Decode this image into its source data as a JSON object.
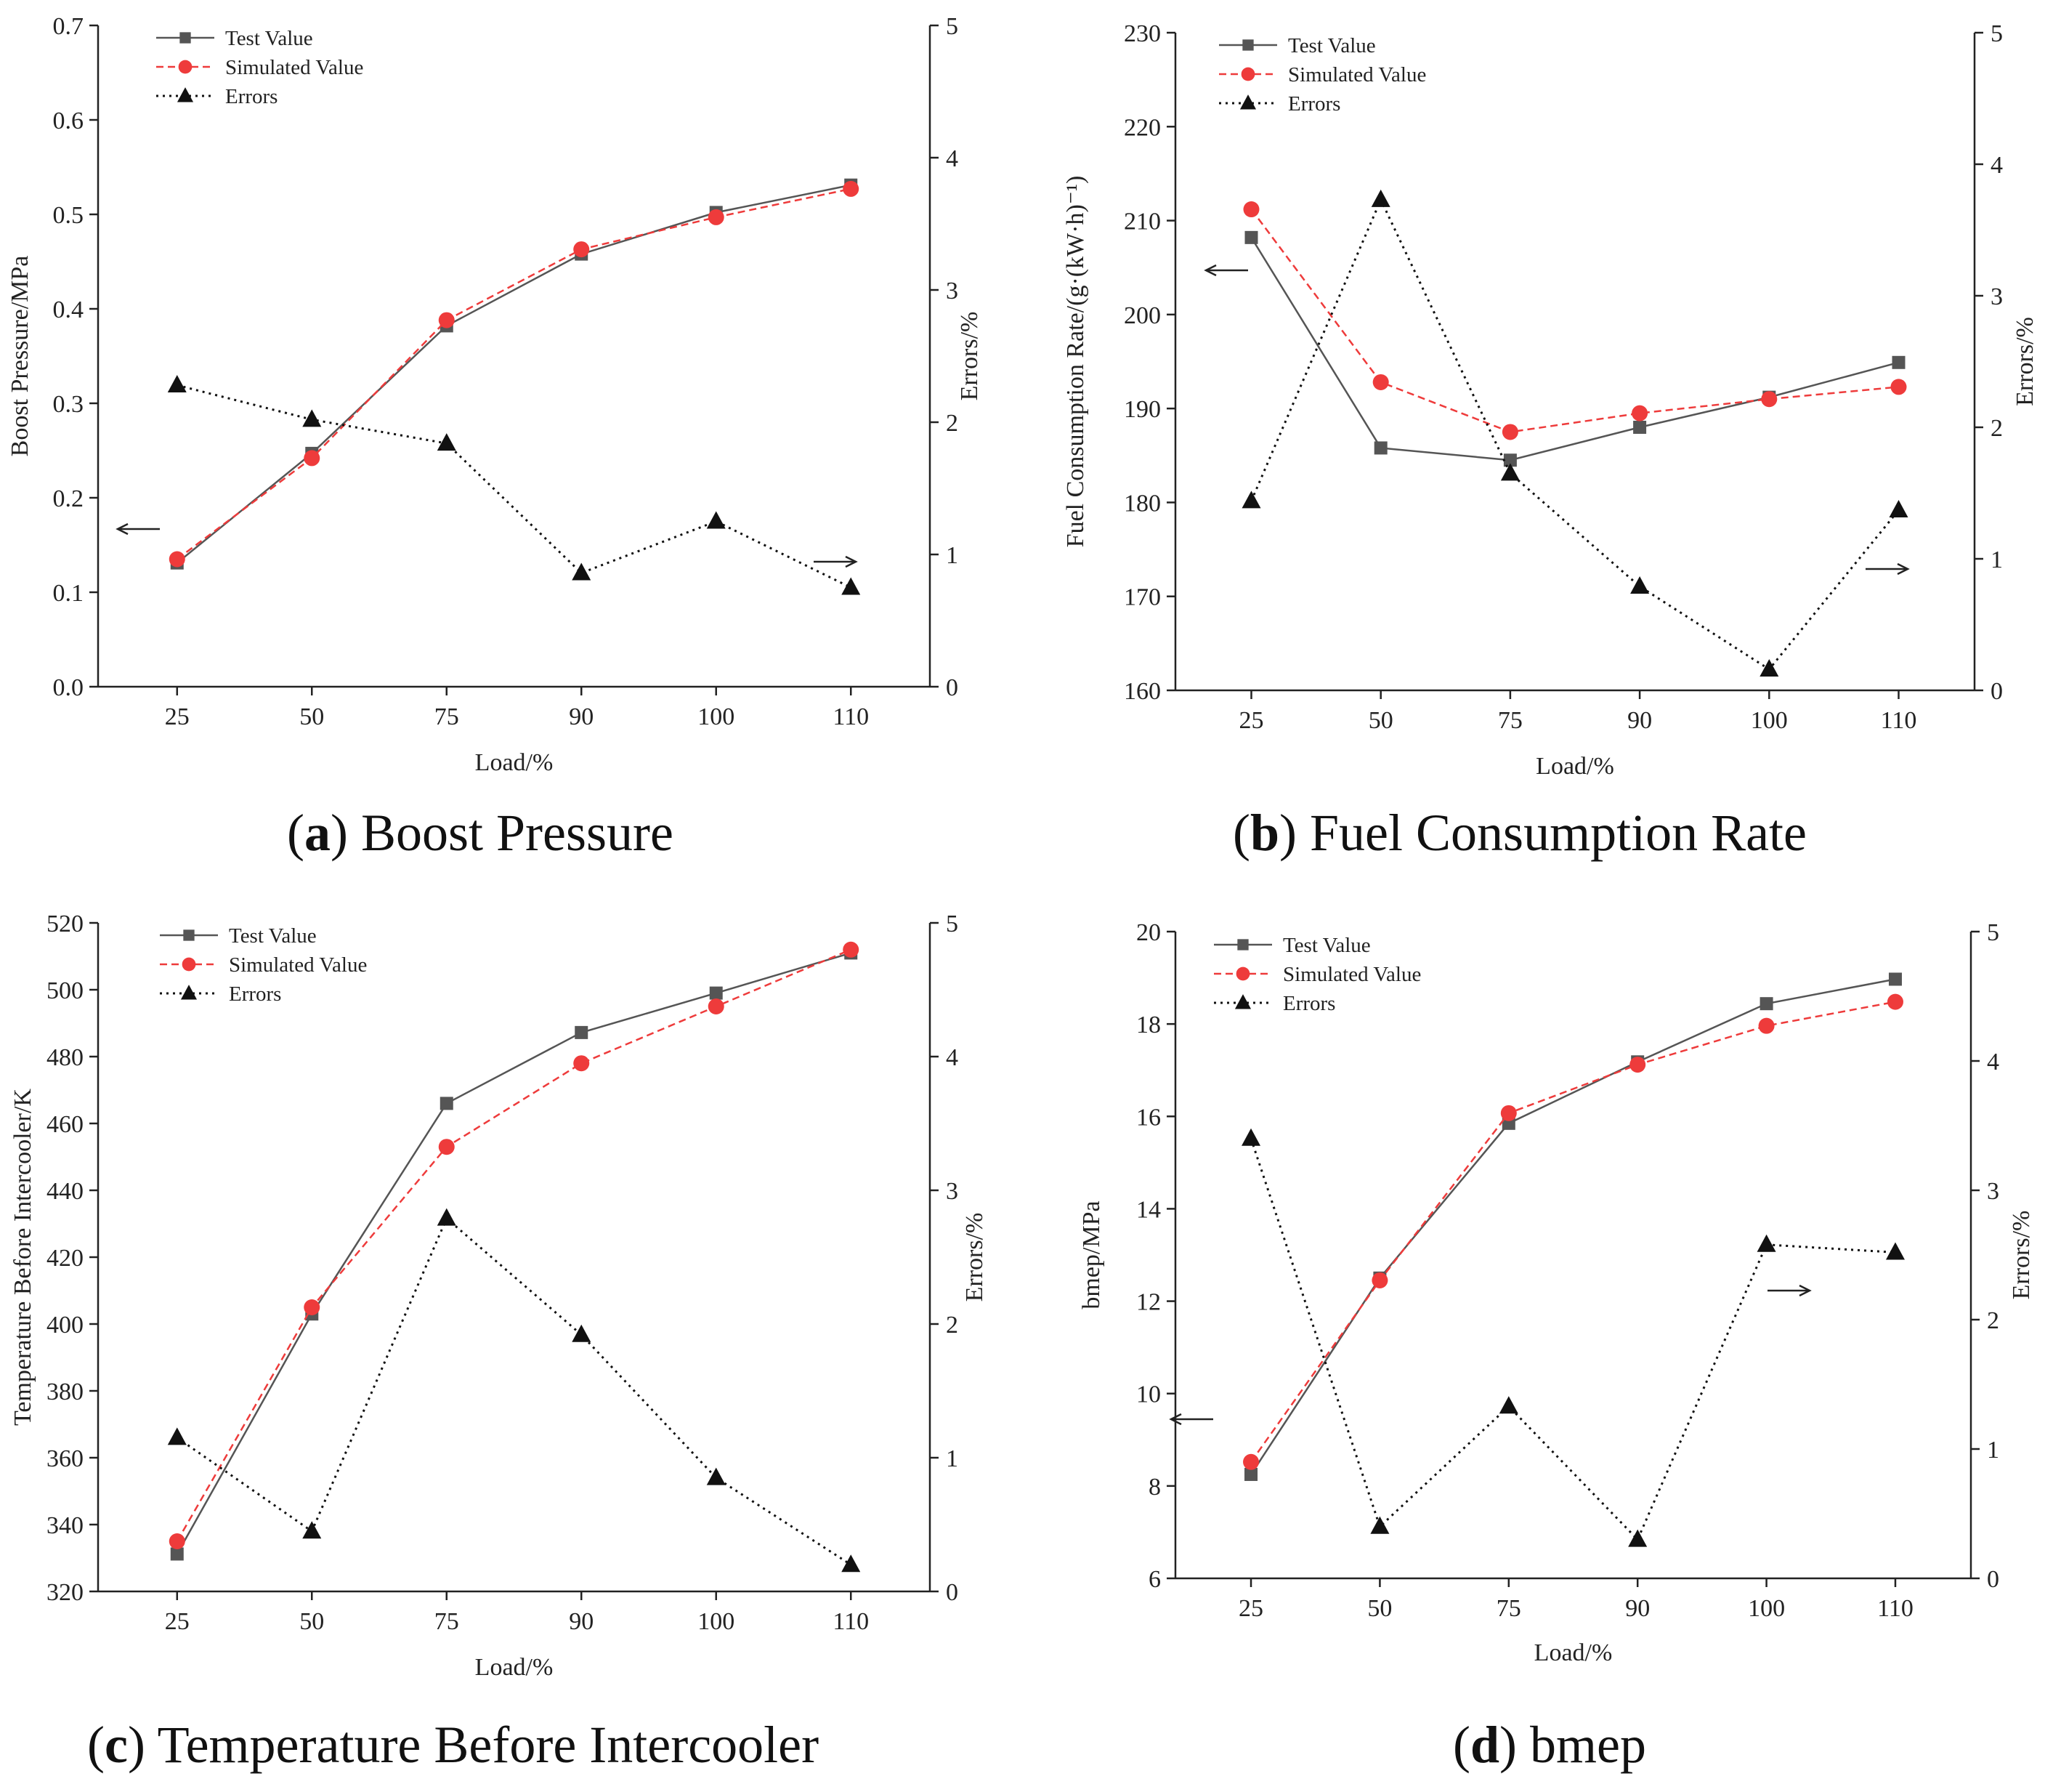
{
  "colors": {
    "test": "#555555",
    "simulated": "#ee3b3b",
    "errors": "#111111",
    "axis": "#222222"
  },
  "legend_labels": [
    "Test Value",
    "Simulated Value",
    "Errors"
  ],
  "xlabel": "Load/%",
  "categories": [
    "25",
    "50",
    "75",
    "90",
    "100",
    "110"
  ],
  "chart_data": [
    {
      "id": "a",
      "type": "line",
      "caption_letter": "a",
      "caption_title": "Boost Pressure",
      "ylabel": "Boost Pressure/MPa",
      "y2label": "Errors/%",
      "ylim": [
        0,
        0.7
      ],
      "yticks": [
        "0.0",
        "0.1",
        "0.2",
        "0.3",
        "0.4",
        "0.5",
        "0.6",
        "0.7"
      ],
      "y2lim": [
        0,
        5
      ],
      "y2ticks": [
        "0",
        "1",
        "2",
        "3",
        "4",
        "5"
      ],
      "series": [
        {
          "name": "Test Value",
          "axis": "left",
          "values": [
            0.131,
            0.247,
            0.382,
            0.458,
            0.502,
            0.531
          ]
        },
        {
          "name": "Simulated Value",
          "axis": "left",
          "values": [
            0.135,
            0.242,
            0.388,
            0.463,
            0.497,
            0.527
          ]
        },
        {
          "name": "Errors",
          "axis": "right",
          "values": [
            2.28,
            2.02,
            1.84,
            0.86,
            1.25,
            0.75
          ]
        }
      ]
    },
    {
      "id": "b",
      "type": "line",
      "caption_letter": "b",
      "caption_title": "Fuel Consumption Rate",
      "ylabel": "Fuel Consumption Rate/(g·(kW·h)⁻¹)",
      "y2label": "Errors/%",
      "ylim": [
        160,
        230
      ],
      "yticks": [
        "160",
        "170",
        "180",
        "190",
        "200",
        "210",
        "220",
        "230"
      ],
      "y2lim": [
        0,
        5
      ],
      "y2ticks": [
        "0",
        "1",
        "2",
        "3",
        "4",
        "5"
      ],
      "series": [
        {
          "name": "Test Value",
          "axis": "left",
          "values": [
            208.2,
            185.8,
            184.5,
            188.0,
            191.2,
            194.9
          ]
        },
        {
          "name": "Simulated Value",
          "axis": "left",
          "values": [
            211.2,
            192.8,
            187.5,
            189.5,
            191.0,
            192.3
          ]
        },
        {
          "name": "Errors",
          "axis": "right",
          "values": [
            1.44,
            3.73,
            1.65,
            0.79,
            0.16,
            1.37
          ]
        }
      ]
    },
    {
      "id": "c",
      "type": "line",
      "caption_letter": "c",
      "caption_title": "Temperature Before Intercooler",
      "ylabel": "Temperature Before Intercooler/K",
      "y2label": "Errors/%",
      "ylim": [
        320,
        520
      ],
      "yticks": [
        "320",
        "340",
        "360",
        "380",
        "400",
        "420",
        "440",
        "460",
        "480",
        "500",
        "520"
      ],
      "y2lim": [
        0,
        5
      ],
      "y2ticks": [
        "0",
        "1",
        "2",
        "3",
        "4",
        "5"
      ],
      "series": [
        {
          "name": "Test Value",
          "axis": "left",
          "values": [
            331.2,
            403.0,
            466.0,
            487.2,
            499.0,
            511.0
          ]
        },
        {
          "name": "Simulated Value",
          "axis": "left",
          "values": [
            335.0,
            405.0,
            453.0,
            478.0,
            495.0,
            512.0
          ]
        },
        {
          "name": "Errors",
          "axis": "right",
          "values": [
            1.15,
            0.45,
            2.79,
            1.92,
            0.85,
            0.2
          ]
        }
      ]
    },
    {
      "id": "d",
      "type": "line",
      "caption_letter": "d",
      "caption_title": "bmep",
      "ylabel": "bmep/MPa",
      "y2label": "Errors/%",
      "ylim": [
        6,
        20
      ],
      "yticks": [
        "6",
        "8",
        "10",
        "12",
        "14",
        "16",
        "18",
        "20"
      ],
      "y2lim": [
        0,
        5
      ],
      "y2ticks": [
        "0",
        "1",
        "2",
        "3",
        "4",
        "5"
      ],
      "series": [
        {
          "name": "Test Value",
          "axis": "left",
          "values": [
            8.25,
            12.5,
            15.85,
            17.18,
            18.44,
            18.97
          ]
        },
        {
          "name": "Simulated Value",
          "axis": "left",
          "values": [
            8.52,
            12.45,
            16.07,
            17.12,
            17.96,
            18.48
          ]
        },
        {
          "name": "Errors",
          "axis": "right",
          "values": [
            3.4,
            0.4,
            1.33,
            0.3,
            2.58,
            2.52
          ]
        }
      ]
    }
  ]
}
